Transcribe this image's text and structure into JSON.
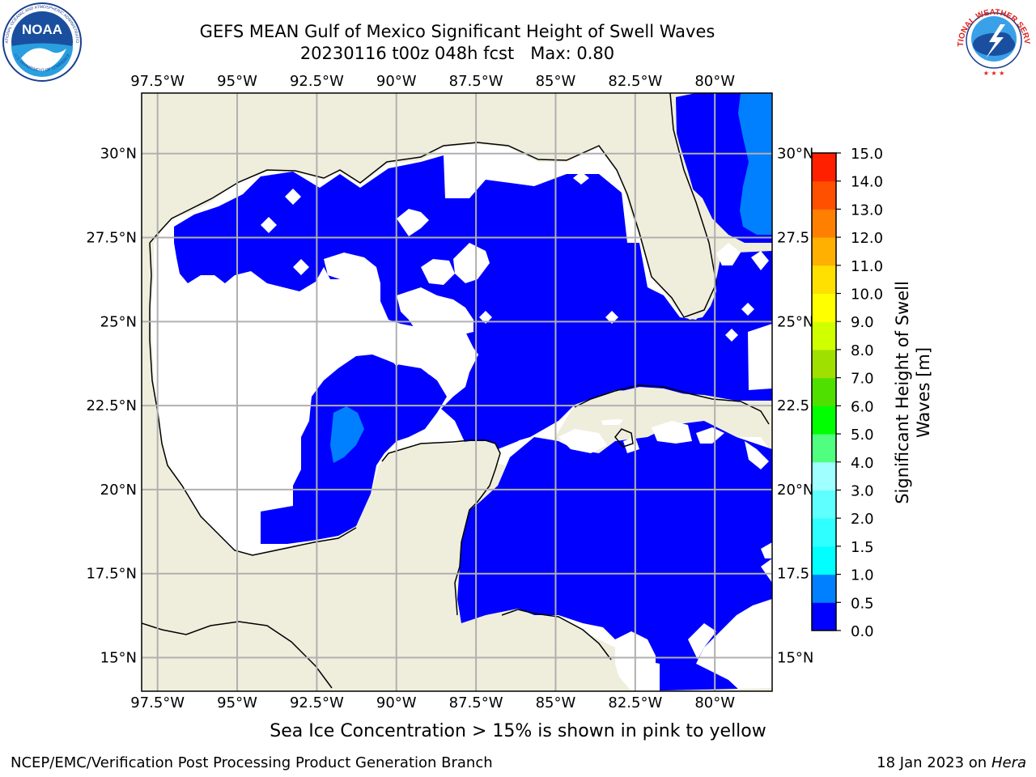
{
  "header": {
    "title_line1": "GEFS MEAN Gulf of Mexico Significant Height of Swell Waves",
    "title_line2": "20230116 t00z 048h fcst   Max: 0.80"
  },
  "logos": {
    "noaa_text": "NOAA",
    "noaa_ring_text": "NATIONAL OCEANIC AND ATMOSPHERIC ADMINISTRATION",
    "noaa_ring_bottom": "U.S. DEPARTMENT OF COMMERCE",
    "nws_ring_text": "NATIONAL WEATHER SERVICE"
  },
  "map": {
    "lon_labels": [
      "97.5°W",
      "95°W",
      "92.5°W",
      "90°W",
      "87.5°W",
      "85°W",
      "82.5°W",
      "80°W"
    ],
    "lon_values": [
      -97.5,
      -95,
      -92.5,
      -90,
      -87.5,
      -85,
      -82.5,
      -80
    ],
    "lat_labels": [
      "30°N",
      "27.5°N",
      "25°N",
      "22.5°N",
      "20°N",
      "17.5°N",
      "15°N"
    ],
    "lat_values": [
      30,
      27.5,
      25,
      22.5,
      20,
      17.5,
      15
    ],
    "right_lat_labels": [
      "30°N",
      "27.5",
      "25°N",
      "22.5",
      "20°N",
      "17.5",
      "15°N"
    ],
    "lon_range": [
      -98,
      -78.2
    ],
    "lat_range": [
      14,
      31.8
    ],
    "colors": {
      "land": "#efeedd",
      "no_data": "#ffffff",
      "bin0": "#0000ff",
      "bin1": "#0080ff",
      "grid": "#b0b0b0"
    }
  },
  "colorbar": {
    "label_line1": "Significant Height of Swell",
    "label_line2": "Waves [m]",
    "ticks": [
      "0.0",
      "0.5",
      "1.0",
      "1.5",
      "2.0",
      "3.0",
      "4.0",
      "5.0",
      "6.0",
      "7.0",
      "8.0",
      "9.0",
      "10.0",
      "11.0",
      "12.0",
      "13.0",
      "14.0",
      "15.0"
    ],
    "colors": [
      "#0000ff",
      "#0080ff",
      "#00ffff",
      "#30ffff",
      "#60ffff",
      "#a0ffff",
      "#50ff80",
      "#00ff00",
      "#50e000",
      "#a0e000",
      "#d0ff00",
      "#ffff00",
      "#ffe000",
      "#ffb000",
      "#ff8000",
      "#ff5000",
      "#ff2000",
      "#ff0000"
    ]
  },
  "caption": "Sea Ice Concentration > 15% is shown in pink to yellow",
  "footer": {
    "left": "NCEP/EMC/Verification Post Processing Product Generation Branch",
    "right_date": "18 Jan 2023 on ",
    "right_host": "Hera"
  }
}
